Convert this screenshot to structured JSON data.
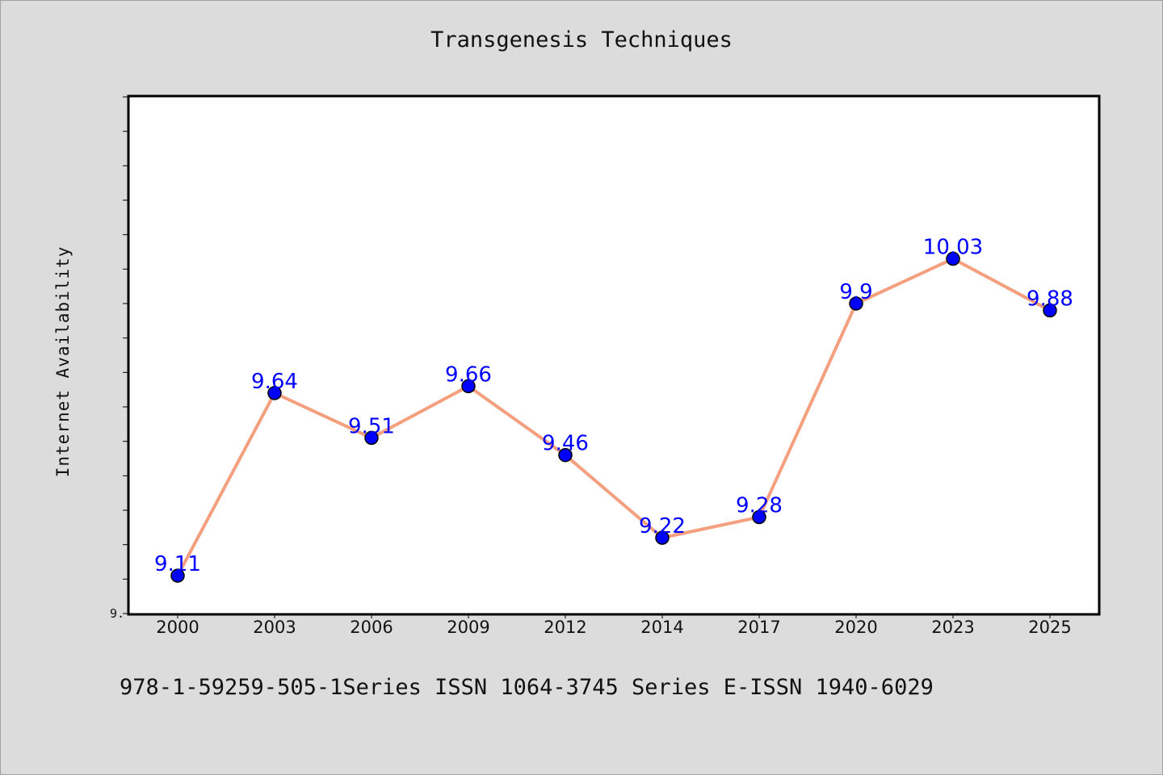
{
  "chart_data": {
    "type": "line",
    "title": "Transgenesis Techniques",
    "xlabel": "",
    "ylabel": "Internet Availability",
    "categories": [
      "2000",
      "2003",
      "2006",
      "2009",
      "2012",
      "2014",
      "2017",
      "2020",
      "2023",
      "2025"
    ],
    "series": [
      {
        "values": [
          9.11,
          9.64,
          9.51,
          9.66,
          9.46,
          9.22,
          9.28,
          9.9,
          10.03,
          9.88
        ]
      }
    ],
    "ylim": [
      9.0,
      10.5
    ],
    "y_tick_labels": [
      "9."
    ],
    "grid": false,
    "line_color": "#f4a07e",
    "marker_color": "#0000ff",
    "label_color": "#0000ff"
  },
  "footer_text": "978-1-59259-505-1Series ISSN 1064-3745 Series E-ISSN 1940-6029"
}
